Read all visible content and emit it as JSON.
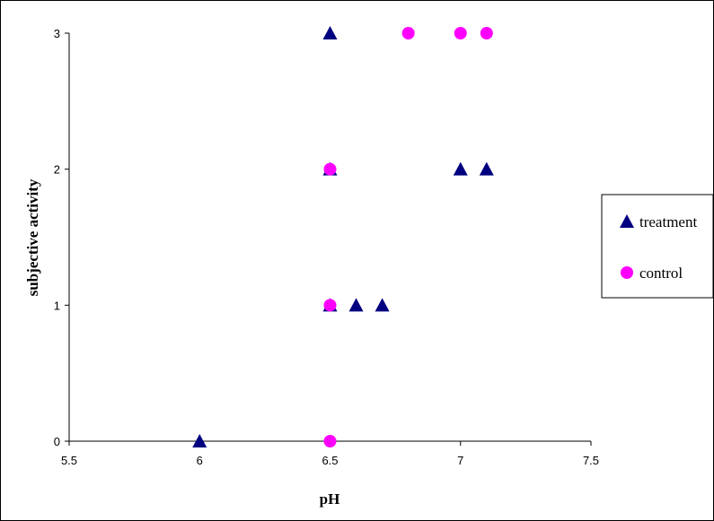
{
  "chart_data": {
    "type": "scatter",
    "xlabel": "pH",
    "ylabel": "subjective activity",
    "xlim": [
      5.5,
      7.5
    ],
    "ylim": [
      0,
      3
    ],
    "xticks": [
      5.5,
      6,
      6.5,
      7,
      7.5
    ],
    "yticks": [
      0,
      1,
      2,
      3
    ],
    "grid": false,
    "legend_position": "right",
    "series": [
      {
        "name": "treatment",
        "marker": "triangle",
        "color": "#000080",
        "points": [
          [
            6,
            0
          ],
          [
            6.5,
            1
          ],
          [
            6.6,
            1
          ],
          [
            6.7,
            1
          ],
          [
            6.5,
            2
          ],
          [
            7,
            2
          ],
          [
            7.1,
            2
          ],
          [
            6.5,
            3
          ]
        ]
      },
      {
        "name": "control",
        "marker": "circle",
        "color": "#FF00FF",
        "points": [
          [
            6.5,
            0
          ],
          [
            6.5,
            1
          ],
          [
            6.5,
            2
          ],
          [
            6.8,
            3
          ],
          [
            7,
            3
          ],
          [
            7.1,
            3
          ]
        ]
      }
    ]
  }
}
